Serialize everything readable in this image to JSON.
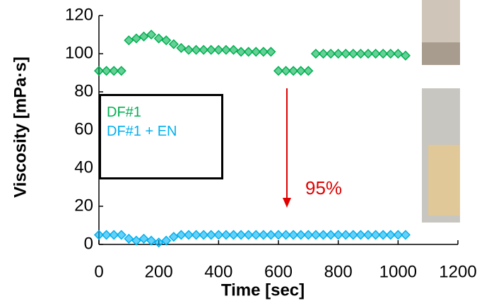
{
  "chart_data": {
    "type": "scatter",
    "x_label": "Time [sec]",
    "y_label": "Viscosity [mPa·s]",
    "annotation": "95%",
    "xlim": [
      0,
      1200
    ],
    "xticks": [
      0,
      200,
      400,
      600,
      800,
      1000,
      1200
    ],
    "ylim": [
      0,
      120
    ],
    "yticks": [
      0,
      20,
      40,
      60,
      80,
      100,
      120
    ],
    "x": [
      0,
      25,
      50,
      75,
      100,
      125,
      150,
      175,
      200,
      225,
      250,
      275,
      300,
      325,
      350,
      375,
      400,
      425,
      450,
      475,
      500,
      525,
      550,
      575,
      600,
      625,
      650,
      675,
      700,
      725,
      750,
      775,
      800,
      825,
      850,
      875,
      900,
      925,
      950,
      975,
      1000,
      1025
    ],
    "series": [
      {
        "name": "DF#1",
        "color": "#00b050",
        "values": [
          91,
          91,
          91,
          91,
          107,
          108,
          109,
          110,
          108,
          107,
          105,
          103,
          102,
          102,
          102,
          102,
          102,
          102,
          102,
          101,
          101,
          101,
          101,
          101,
          91,
          91,
          91,
          91,
          91,
          100,
          100,
          100,
          100,
          100,
          100,
          100,
          100,
          100,
          100,
          100,
          100,
          99
        ]
      },
      {
        "name": "DF#1 + EN",
        "color": "#00b0f0",
        "values": [
          5,
          5,
          5,
          5,
          3,
          2,
          3,
          2,
          1,
          2,
          4,
          5,
          5,
          5,
          5,
          5,
          5,
          5,
          5,
          5,
          5,
          5,
          5,
          5,
          5,
          5,
          5,
          5,
          5,
          5,
          5,
          5,
          5,
          5,
          5,
          5,
          5,
          5,
          5,
          5,
          5,
          5
        ]
      }
    ]
  }
}
